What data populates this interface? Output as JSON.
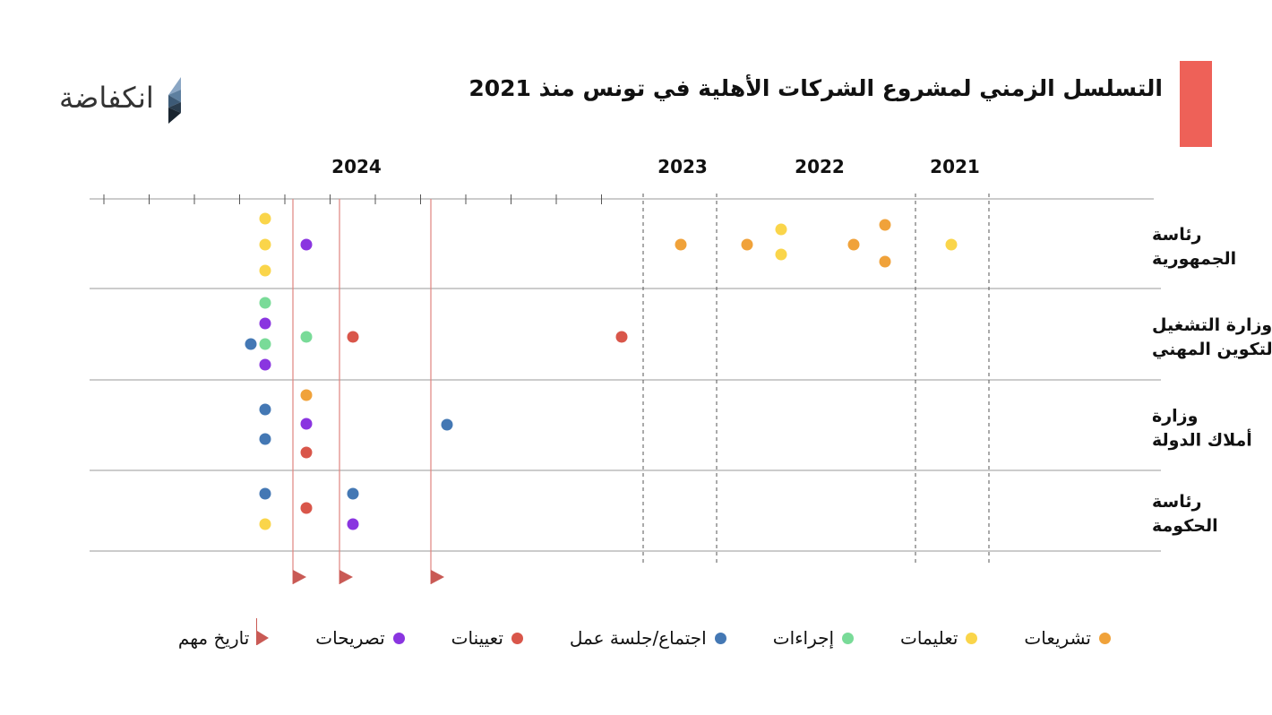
{
  "header": {
    "title": "التسلسل الزمني لمشروع الشركات الأهلية في تونس منذ 2021",
    "accent_color": "#ee6158",
    "logo_text": "انكفاضة",
    "logo_icon": "layered-triangle-logo-icon"
  },
  "chart_data": {
    "type": "scatter",
    "title": "التسلسل الزمني لمشروع الشركات الأهلية في تونس منذ 2021",
    "x_direction": "right-to-left",
    "years": [
      "2021",
      "2022",
      "2023",
      "2024"
    ],
    "rows": [
      "رئاسة الجمهورية",
      "وزارة التشغيل والتكوين المهني",
      "وزارة أملاك الدولة",
      "رئاسة الحكومة"
    ],
    "row_labels": [
      [
        "رئاسة",
        "الجمهورية"
      ],
      [
        "وزارة التشغيل",
        "والتكوين المهني"
      ],
      [
        "وزارة",
        "أملاك الدولة"
      ],
      [
        "رئاسة",
        "الحكومة"
      ]
    ],
    "categories": [
      {
        "key": "legislation",
        "name": "تشريعات",
        "color": "#f0a23a"
      },
      {
        "key": "instructions",
        "name": "تعليمات",
        "color": "#fad54a"
      },
      {
        "key": "procedures",
        "name": "إجراءات",
        "color": "#79db98"
      },
      {
        "key": "meeting",
        "name": "اجتماع/جلسة عمل",
        "color": "#4478b4"
      },
      {
        "key": "appointments",
        "name": "تعيينات",
        "color": "#d9564a"
      },
      {
        "key": "statements",
        "name": "تصريحات",
        "color": "#8a35e0"
      }
    ],
    "important_dates_label": "تاريخ مهم",
    "important_date_color": "#e0847e",
    "important_dates": [
      "2024-01",
      "2024-02",
      "2024-04"
    ],
    "events": [
      {
        "row": 0,
        "date": "2021-06",
        "category": "instructions"
      },
      {
        "row": 0,
        "date": "2021-12",
        "category": "legislation"
      },
      {
        "row": 0,
        "date": "2021-12",
        "category": "legislation"
      },
      {
        "row": 0,
        "date": "2022-03",
        "category": "legislation"
      },
      {
        "row": 0,
        "date": "2022-08",
        "category": "instructions"
      },
      {
        "row": 0,
        "date": "2022-08",
        "category": "instructions"
      },
      {
        "row": 0,
        "date": "2022-09",
        "category": "legislation"
      },
      {
        "row": 0,
        "date": "2023-06",
        "category": "legislation"
      },
      {
        "row": 0,
        "date": "2023-12",
        "category": "instructions"
      },
      {
        "row": 0,
        "date": "2023-12",
        "category": "instructions"
      },
      {
        "row": 0,
        "date": "2023-12",
        "category": "instructions"
      },
      {
        "row": 0,
        "date": "2024-01",
        "category": "statements"
      },
      {
        "row": 1,
        "date": "2023-03",
        "category": "appointments"
      },
      {
        "row": 1,
        "date": "2024-02",
        "category": "appointments"
      },
      {
        "row": 1,
        "date": "2024-01",
        "category": "procedures"
      },
      {
        "row": 1,
        "date": "2023-12",
        "category": "procedures"
      },
      {
        "row": 1,
        "date": "2023-12",
        "category": "statements"
      },
      {
        "row": 1,
        "date": "2023-12",
        "category": "procedures"
      },
      {
        "row": 1,
        "date": "2023-12",
        "category": "statements"
      },
      {
        "row": 1,
        "date": "2023-12",
        "category": "meeting"
      },
      {
        "row": 2,
        "date": "2024-04",
        "category": "meeting"
      },
      {
        "row": 2,
        "date": "2024-01",
        "category": "legislation"
      },
      {
        "row": 2,
        "date": "2024-01",
        "category": "statements"
      },
      {
        "row": 2,
        "date": "2024-01",
        "category": "appointments"
      },
      {
        "row": 2,
        "date": "2023-12",
        "category": "meeting"
      },
      {
        "row": 2,
        "date": "2023-12",
        "category": "meeting"
      },
      {
        "row": 3,
        "date": "2024-02",
        "category": "meeting"
      },
      {
        "row": 3,
        "date": "2024-02",
        "category": "statements"
      },
      {
        "row": 3,
        "date": "2024-01",
        "category": "appointments"
      },
      {
        "row": 3,
        "date": "2023-12",
        "category": "meeting"
      },
      {
        "row": 3,
        "date": "2023-12",
        "category": "instructions"
      }
    ],
    "grid": true,
    "legend_position": "bottom"
  }
}
